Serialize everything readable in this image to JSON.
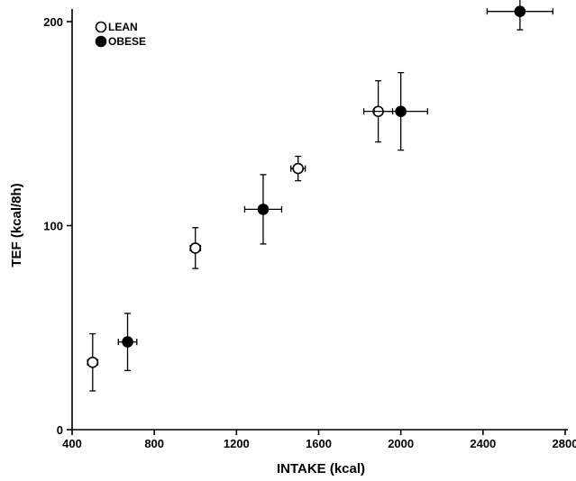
{
  "chart_data": {
    "type": "scatter",
    "xlabel": "INTAKE (kcal)",
    "ylabel": "TEF (kcal/8h)",
    "xlim": [
      400,
      2800
    ],
    "ylim": [
      0,
      200
    ],
    "x_ticks": [
      400,
      800,
      1200,
      1600,
      2000,
      2400,
      2800
    ],
    "y_ticks": [
      0,
      100,
      200
    ],
    "grid": false,
    "legend_position": "top-left",
    "error_bars": true,
    "series": [
      {
        "name": "LEAN",
        "marker": "open-circle",
        "points": [
          {
            "x": 500,
            "y": 33,
            "x_err": 25,
            "y_err": 14
          },
          {
            "x": 1000,
            "y": 89,
            "x_err": 25,
            "y_err": 10
          },
          {
            "x": 1500,
            "y": 128,
            "x_err": 35,
            "y_err": 6
          },
          {
            "x": 1890,
            "y": 156,
            "x_err": 70,
            "y_err": 15
          }
        ]
      },
      {
        "name": "OBESE",
        "marker": "filled-circle",
        "points": [
          {
            "x": 670,
            "y": 43,
            "x_err": 45,
            "y_err": 14
          },
          {
            "x": 1330,
            "y": 108,
            "x_err": 90,
            "y_err": 17
          },
          {
            "x": 2000,
            "y": 156,
            "x_err": 130,
            "y_err": 19
          },
          {
            "x": 2580,
            "y": 205,
            "x_err": 160,
            "y_err": 9
          }
        ]
      }
    ]
  }
}
